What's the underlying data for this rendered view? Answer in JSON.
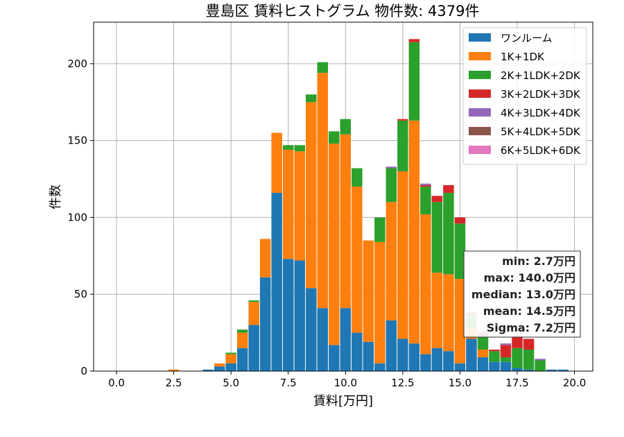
{
  "chart_data": {
    "type": "bar",
    "stacked": true,
    "title": "豊島区 賃料ヒストグラム 物件数: 4379件",
    "xlabel": "賃料[万円]",
    "ylabel": "件数",
    "xlim": [
      -1.0,
      20.8
    ],
    "ylim": [
      0,
      227
    ],
    "xticks": [
      0.0,
      2.5,
      5.0,
      7.5,
      10.0,
      12.5,
      15.0,
      17.5,
      20.0
    ],
    "xtick_labels": [
      "0.0",
      "2.5",
      "5.0",
      "7.5",
      "10.0",
      "12.5",
      "15.0",
      "17.5",
      "20.0"
    ],
    "yticks": [
      0,
      50,
      100,
      150,
      200
    ],
    "ytick_labels": [
      "0",
      "50",
      "100",
      "150",
      "200"
    ],
    "grid": true,
    "legend_position": "top-right",
    "bin_width": 0.5,
    "x": [
      2.5,
      4.0,
      4.5,
      5.0,
      5.5,
      6.0,
      6.5,
      7.0,
      7.5,
      8.0,
      8.5,
      9.0,
      9.5,
      10.0,
      10.5,
      11.0,
      11.5,
      12.0,
      12.5,
      13.0,
      13.5,
      14.0,
      14.5,
      15.0,
      15.5,
      16.0,
      16.5,
      17.0,
      17.5,
      18.0,
      18.5,
      19.0,
      19.5
    ],
    "series": [
      {
        "name": "ワンルーム",
        "color": "#1f77b4",
        "values": [
          0,
          1,
          3,
          5,
          15,
          30,
          61,
          116,
          73,
          72,
          54,
          41,
          17,
          41,
          25,
          19,
          5,
          33,
          21,
          18,
          11,
          15,
          13,
          5,
          21,
          9,
          6,
          6,
          2,
          1,
          0,
          1,
          1
        ]
      },
      {
        "name": "1K+1DK",
        "color": "#ff7f0e",
        "values": [
          1,
          0,
          2,
          6,
          10,
          15,
          25,
          39,
          71,
          71,
          121,
          153,
          131,
          113,
          95,
          66,
          79,
          77,
          109,
          145,
          91,
          49,
          50,
          55,
          7,
          5,
          0,
          0,
          0,
          0,
          0,
          0,
          0
        ]
      },
      {
        "name": "2K+1LDK+2DK",
        "color": "#2ca02c",
        "values": [
          0,
          0,
          0,
          1,
          2,
          1,
          0,
          0,
          3,
          4,
          5,
          7,
          8,
          10,
          12,
          0,
          16,
          22,
          33,
          51,
          18,
          46,
          53,
          36,
          9,
          8,
          7,
          3,
          13,
          13,
          7,
          0,
          0
        ]
      },
      {
        "name": "3K+2LDK+3DK",
        "color": "#d62728",
        "values": [
          0,
          0,
          0,
          0,
          0,
          0,
          0,
          0,
          0,
          0,
          0,
          0,
          0,
          0,
          0,
          0,
          0,
          0,
          1,
          2,
          1,
          4,
          5,
          4,
          1,
          2,
          1,
          8,
          8,
          7,
          0,
          0,
          0
        ]
      },
      {
        "name": "4K+3LDK+4DK",
        "color": "#9467bd",
        "values": [
          0,
          0,
          0,
          0,
          0,
          0,
          0,
          0,
          0,
          0,
          0,
          0,
          0,
          0,
          0,
          0,
          0,
          1,
          0,
          0,
          1,
          0,
          0,
          0,
          0,
          1,
          0,
          1,
          0,
          0,
          1,
          0,
          0
        ]
      },
      {
        "name": "5K+4LDK+5DK",
        "color": "#8c564b",
        "values": [
          0,
          0,
          0,
          0,
          0,
          0,
          0,
          0,
          0,
          0,
          0,
          0,
          0,
          0,
          0,
          0,
          0,
          0,
          0,
          0,
          0,
          0,
          0,
          0,
          0,
          1,
          0,
          0,
          0,
          0,
          0,
          0,
          0
        ]
      },
      {
        "name": "6K+5LDK+6DK",
        "color": "#e377c2",
        "values": [
          0,
          0,
          0,
          0,
          0,
          0,
          0,
          0,
          0,
          0,
          0,
          0,
          0,
          0,
          0,
          0,
          0,
          0,
          0,
          0,
          0,
          0,
          0,
          0,
          0,
          0,
          0,
          0,
          0,
          0,
          0,
          0,
          0
        ]
      }
    ],
    "annotation": {
      "lines": [
        "min: 2.7万円",
        "max: 140.0万円",
        "median: 13.0万円",
        "mean: 14.5万円",
        "Sigma: 7.2万円"
      ]
    }
  }
}
